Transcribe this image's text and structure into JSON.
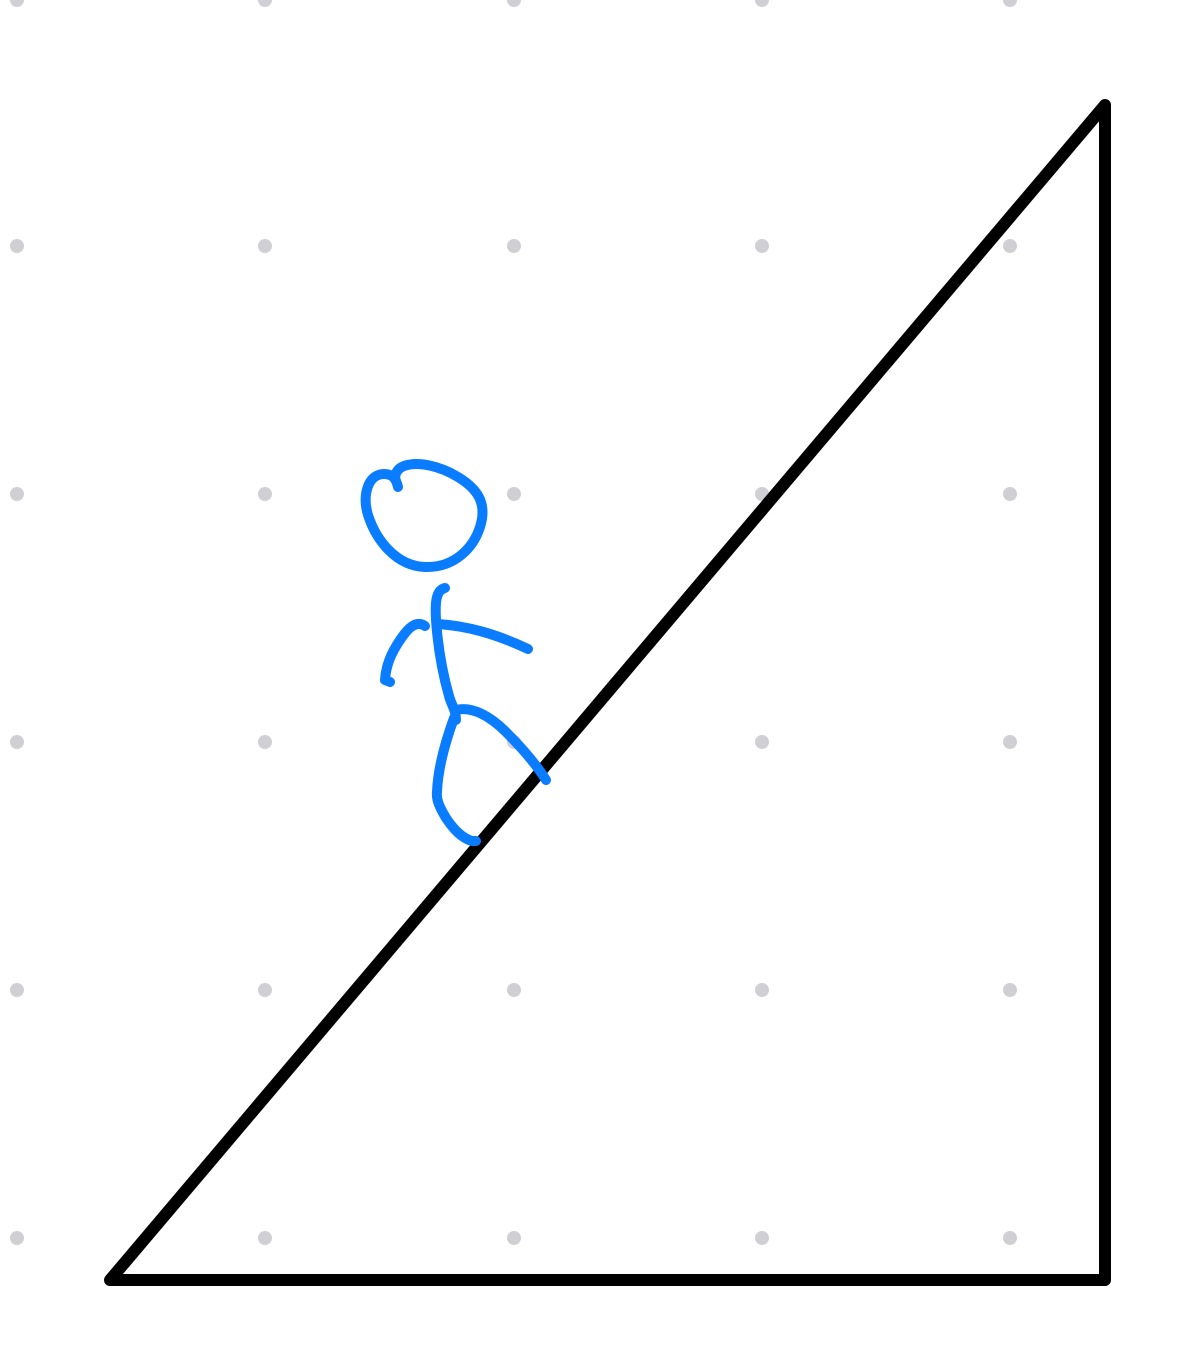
{
  "canvas": {
    "background": "#ffffff",
    "grid_dot_color": "#d0d0d4"
  },
  "drawing": {
    "triangle": {
      "name": "right-triangle-ramp",
      "stroke_color": "#000000"
    },
    "figure": {
      "name": "stick-figure-walking-up-slope",
      "stroke_color": "#0a7cff"
    }
  }
}
